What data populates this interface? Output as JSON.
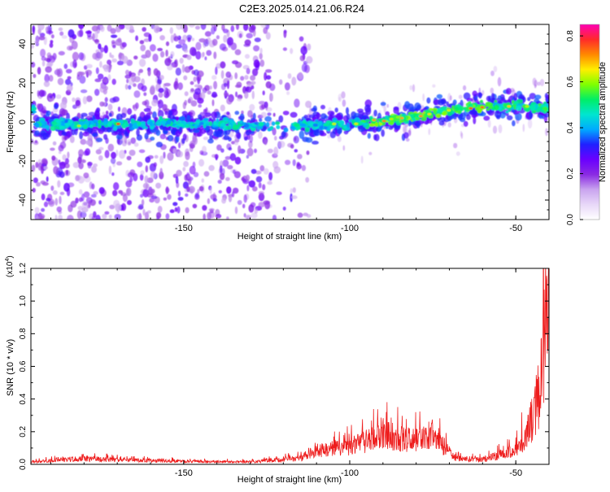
{
  "title": "C2E3.2025.014.21.06.R24",
  "chart_data": [
    {
      "type": "heatmap",
      "xlabel": "Height of straight line (km)",
      "ylabel": "Frequency (Hz)",
      "xlim": [
        -196,
        -40
      ],
      "ylim": [
        -50,
        50
      ],
      "xticks": [
        -150,
        -100,
        -50
      ],
      "yticks": [
        -40,
        -20,
        0,
        20,
        40
      ],
      "colorbar": {
        "label": "Normalized spectral amplitude",
        "range": [
          0,
          0.85
        ],
        "ticks": [
          0.0,
          0.2,
          0.4,
          0.6,
          0.8
        ],
        "colors": [
          "#ffffff",
          "#e8d8f8",
          "#c9a4ef",
          "#8a2be2",
          "#6a00ff",
          "#2020ff",
          "#00aaff",
          "#00e5d0",
          "#00ee66",
          "#80ff00",
          "#ffee00",
          "#ff8800",
          "#ff2a2a",
          "#ff00b4"
        ]
      },
      "ridge": {
        "description_points": [
          {
            "x": -195,
            "y": -1
          },
          {
            "x": -150,
            "y": -1
          },
          {
            "x": -120,
            "y": -2
          },
          {
            "x": -100,
            "y": -1
          },
          {
            "x": -90,
            "y": 0
          },
          {
            "x": -80,
            "y": 3
          },
          {
            "x": -70,
            "y": 6
          },
          {
            "x": -60,
            "y": 8
          },
          {
            "x": -50,
            "y": 8
          },
          {
            "x": -40,
            "y": 7
          }
        ],
        "scatter_region_x": [
          -196,
          -112
        ]
      }
    },
    {
      "type": "line",
      "xlabel": "Height of straight line (km)",
      "ylabel": "SNR (10 * v/v)",
      "multiplier_label": "(x10",
      "multiplier_exp": "4",
      "xlim": [
        -196,
        -40
      ],
      "ylim": [
        0,
        1.2
      ],
      "xticks": [
        -150,
        -100,
        -50
      ],
      "yticks": [
        0.0,
        0.2,
        0.4,
        0.6,
        0.8,
        1.0,
        1.2
      ],
      "series": [
        {
          "color": "#ee1c1c",
          "envelope": [
            {
              "x": -196,
              "y": 0.02
            },
            {
              "x": -180,
              "y": 0.05
            },
            {
              "x": -170,
              "y": 0.04
            },
            {
              "x": -150,
              "y": 0.025
            },
            {
              "x": -130,
              "y": 0.02
            },
            {
              "x": -115,
              "y": 0.05
            },
            {
              "x": -110,
              "y": 0.12
            },
            {
              "x": -100,
              "y": 0.15
            },
            {
              "x": -90,
              "y": 0.25
            },
            {
              "x": -85,
              "y": 0.22
            },
            {
              "x": -80,
              "y": 0.2
            },
            {
              "x": -75,
              "y": 0.25
            },
            {
              "x": -72,
              "y": 0.15
            },
            {
              "x": -68,
              "y": 0.05
            },
            {
              "x": -60,
              "y": 0.04
            },
            {
              "x": -50,
              "y": 0.12
            },
            {
              "x": -46,
              "y": 0.3
            },
            {
              "x": -43,
              "y": 0.6
            },
            {
              "x": -41,
              "y": 1.2
            }
          ]
        }
      ]
    }
  ]
}
